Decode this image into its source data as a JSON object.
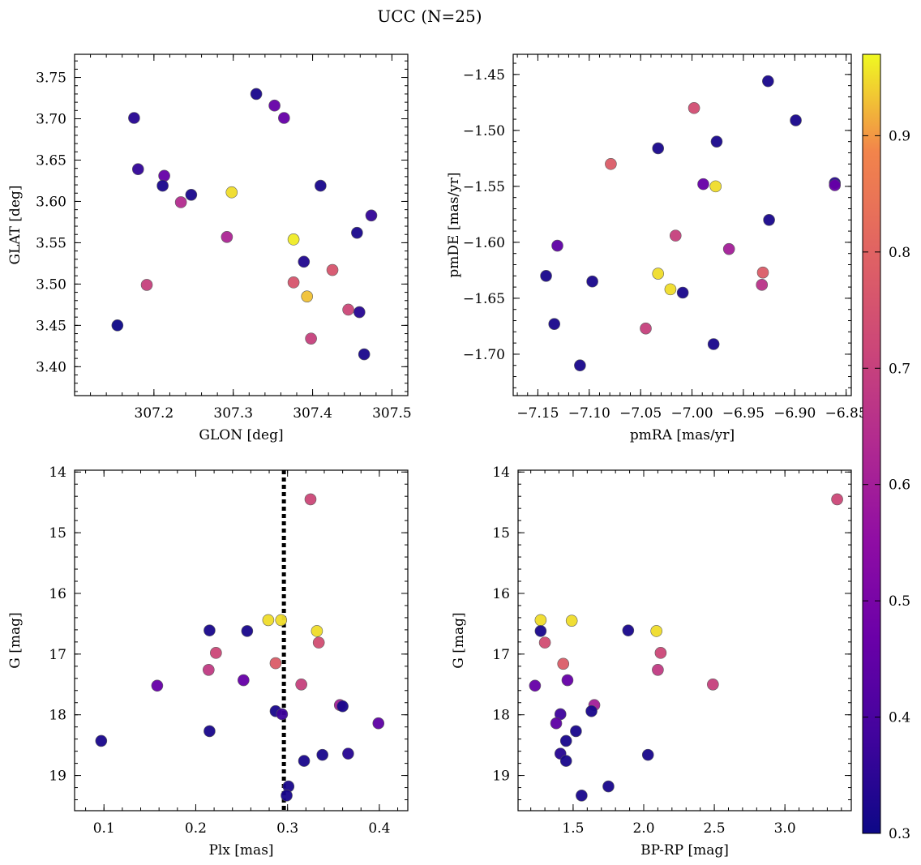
{
  "title": "UCC (N=25)",
  "colorbar": {
    "cmap": "plasma",
    "range": [
      0.3,
      0.97
    ],
    "ticks": [
      "0.3",
      "0.4",
      "0.5",
      "0.6",
      "0.7",
      "0.8",
      "0.9"
    ]
  },
  "chart_data": [
    {
      "type": "scatter",
      "id": "glon-glat",
      "xlabel": "GLON [deg]",
      "ylabel": "GLAT [deg]",
      "xlim": [
        307.1,
        307.52
      ],
      "ylim": [
        3.365,
        3.778
      ],
      "xticks": [
        "307.2",
        "307.3",
        "307.4",
        "307.5"
      ],
      "yticks": [
        "3.40",
        "3.45",
        "3.50",
        "3.55",
        "3.60",
        "3.65",
        "3.70",
        "3.75"
      ],
      "points": [
        {
          "x": 307.175,
          "y": 3.701,
          "c": 0.34
        },
        {
          "x": 307.18,
          "y": 3.639,
          "c": 0.36
        },
        {
          "x": 307.213,
          "y": 3.631,
          "c": 0.46
        },
        {
          "x": 307.211,
          "y": 3.619,
          "c": 0.32
        },
        {
          "x": 307.247,
          "y": 3.608,
          "c": 0.32
        },
        {
          "x": 307.234,
          "y": 3.599,
          "c": 0.64
        },
        {
          "x": 307.298,
          "y": 3.611,
          "c": 0.95
        },
        {
          "x": 307.329,
          "y": 3.73,
          "c": 0.32
        },
        {
          "x": 307.352,
          "y": 3.716,
          "c": 0.46
        },
        {
          "x": 307.364,
          "y": 3.701,
          "c": 0.46
        },
        {
          "x": 307.41,
          "y": 3.619,
          "c": 0.32
        },
        {
          "x": 307.292,
          "y": 3.557,
          "c": 0.62
        },
        {
          "x": 307.376,
          "y": 3.554,
          "c": 0.96
        },
        {
          "x": 307.389,
          "y": 3.527,
          "c": 0.33
        },
        {
          "x": 307.456,
          "y": 3.562,
          "c": 0.32
        },
        {
          "x": 307.474,
          "y": 3.583,
          "c": 0.36
        },
        {
          "x": 307.191,
          "y": 3.499,
          "c": 0.7
        },
        {
          "x": 307.376,
          "y": 3.502,
          "c": 0.76
        },
        {
          "x": 307.425,
          "y": 3.517,
          "c": 0.76
        },
        {
          "x": 307.393,
          "y": 3.485,
          "c": 0.93
        },
        {
          "x": 307.445,
          "y": 3.469,
          "c": 0.72
        },
        {
          "x": 307.459,
          "y": 3.466,
          "c": 0.34
        },
        {
          "x": 307.398,
          "y": 3.434,
          "c": 0.7
        },
        {
          "x": 307.465,
          "y": 3.415,
          "c": 0.32
        },
        {
          "x": 307.154,
          "y": 3.45,
          "c": 0.3
        }
      ]
    },
    {
      "type": "scatter",
      "id": "pm",
      "xlabel": "pmRA [mas/yr]",
      "ylabel": "pmDE [mas/yr]",
      "xlim": [
        -7.174,
        -6.845
      ],
      "ylim": [
        -1.737,
        -1.432
      ],
      "xticks": [
        "−7.15",
        "−7.10",
        "−7.05",
        "−7.00",
        "−6.95",
        "−6.90",
        "−6.85"
      ],
      "yticks": [
        "−1.45",
        "−1.50",
        "−1.55",
        "−1.60",
        "−1.65",
        "−1.70"
      ],
      "points": [
        {
          "x": -6.926,
          "y": -1.456,
          "c": 0.32
        },
        {
          "x": -6.998,
          "y": -1.48,
          "c": 0.74
        },
        {
          "x": -6.899,
          "y": -1.491,
          "c": 0.32
        },
        {
          "x": -7.033,
          "y": -1.516,
          "c": 0.32
        },
        {
          "x": -6.976,
          "y": -1.51,
          "c": 0.32
        },
        {
          "x": -7.079,
          "y": -1.53,
          "c": 0.78
        },
        {
          "x": -6.989,
          "y": -1.548,
          "c": 0.46
        },
        {
          "x": -6.977,
          "y": -1.55,
          "c": 0.95
        },
        {
          "x": -6.861,
          "y": -1.547,
          "c": 0.34
        },
        {
          "x": -6.861,
          "y": -1.549,
          "c": 0.46
        },
        {
          "x": -6.925,
          "y": -1.58,
          "c": 0.32
        },
        {
          "x": -7.016,
          "y": -1.594,
          "c": 0.7
        },
        {
          "x": -6.964,
          "y": -1.606,
          "c": 0.6
        },
        {
          "x": -7.131,
          "y": -1.603,
          "c": 0.44
        },
        {
          "x": -7.142,
          "y": -1.63,
          "c": 0.32
        },
        {
          "x": -7.097,
          "y": -1.635,
          "c": 0.32
        },
        {
          "x": -7.033,
          "y": -1.628,
          "c": 0.95
        },
        {
          "x": -6.931,
          "y": -1.627,
          "c": 0.78
        },
        {
          "x": -6.932,
          "y": -1.638,
          "c": 0.66
        },
        {
          "x": -7.021,
          "y": -1.642,
          "c": 0.95
        },
        {
          "x": -7.009,
          "y": -1.645,
          "c": 0.32
        },
        {
          "x": -7.134,
          "y": -1.673,
          "c": 0.32
        },
        {
          "x": -7.045,
          "y": -1.677,
          "c": 0.7
        },
        {
          "x": -6.979,
          "y": -1.691,
          "c": 0.32
        },
        {
          "x": -7.109,
          "y": -1.71,
          "c": 0.32
        }
      ]
    },
    {
      "type": "scatter",
      "id": "plx-g",
      "xlabel": "Plx [mas]",
      "ylabel": "G [mag]",
      "xlim": [
        0.068,
        0.431
      ],
      "ylim": [
        19.58,
        13.97
      ],
      "y_inverted": true,
      "xticks": [
        "0.1",
        "0.2",
        "0.3",
        "0.4"
      ],
      "yticks": [
        "14",
        "15",
        "16",
        "17",
        "18",
        "19"
      ],
      "vline": 0.296,
      "points": [
        {
          "x": 0.325,
          "y": 14.45,
          "c": 0.72
        },
        {
          "x": 0.279,
          "y": 16.44,
          "c": 0.95
        },
        {
          "x": 0.293,
          "y": 16.44,
          "c": 0.95
        },
        {
          "x": 0.332,
          "y": 16.62,
          "c": 0.95
        },
        {
          "x": 0.215,
          "y": 16.61,
          "c": 0.32
        },
        {
          "x": 0.256,
          "y": 16.62,
          "c": 0.32
        },
        {
          "x": 0.222,
          "y": 16.98,
          "c": 0.72
        },
        {
          "x": 0.334,
          "y": 16.81,
          "c": 0.74
        },
        {
          "x": 0.214,
          "y": 17.26,
          "c": 0.68
        },
        {
          "x": 0.287,
          "y": 17.15,
          "c": 0.78
        },
        {
          "x": 0.158,
          "y": 17.52,
          "c": 0.46
        },
        {
          "x": 0.252,
          "y": 17.43,
          "c": 0.46
        },
        {
          "x": 0.315,
          "y": 17.5,
          "c": 0.7
        },
        {
          "x": 0.357,
          "y": 17.84,
          "c": 0.6
        },
        {
          "x": 0.36,
          "y": 17.86,
          "c": 0.32
        },
        {
          "x": 0.287,
          "y": 17.94,
          "c": 0.32
        },
        {
          "x": 0.294,
          "y": 17.99,
          "c": 0.38
        },
        {
          "x": 0.399,
          "y": 18.14,
          "c": 0.44
        },
        {
          "x": 0.215,
          "y": 18.27,
          "c": 0.32
        },
        {
          "x": 0.097,
          "y": 18.43,
          "c": 0.32
        },
        {
          "x": 0.338,
          "y": 18.66,
          "c": 0.32
        },
        {
          "x": 0.366,
          "y": 18.64,
          "c": 0.34
        },
        {
          "x": 0.318,
          "y": 18.76,
          "c": 0.32
        },
        {
          "x": 0.301,
          "y": 19.18,
          "c": 0.32
        },
        {
          "x": 0.299,
          "y": 19.33,
          "c": 0.32
        }
      ]
    },
    {
      "type": "scatter",
      "id": "bprp-g",
      "xlabel": "BP-RP [mag]",
      "ylabel": "G [mag]",
      "xlim": [
        1.11,
        3.47
      ],
      "ylim": [
        19.58,
        13.97
      ],
      "y_inverted": true,
      "xticks": [
        "1.5",
        "2.0",
        "2.5",
        "3.0"
      ],
      "yticks": [
        "14",
        "15",
        "16",
        "17",
        "18",
        "19"
      ],
      "points": [
        {
          "x": 3.37,
          "y": 14.45,
          "c": 0.72
        },
        {
          "x": 1.27,
          "y": 16.44,
          "c": 0.95
        },
        {
          "x": 1.49,
          "y": 16.45,
          "c": 0.95
        },
        {
          "x": 2.09,
          "y": 16.62,
          "c": 0.95
        },
        {
          "x": 1.27,
          "y": 16.62,
          "c": 0.32
        },
        {
          "x": 1.89,
          "y": 16.61,
          "c": 0.32
        },
        {
          "x": 1.3,
          "y": 16.81,
          "c": 0.74
        },
        {
          "x": 2.12,
          "y": 16.98,
          "c": 0.72
        },
        {
          "x": 1.43,
          "y": 17.16,
          "c": 0.78
        },
        {
          "x": 2.1,
          "y": 17.26,
          "c": 0.68
        },
        {
          "x": 1.46,
          "y": 17.43,
          "c": 0.46
        },
        {
          "x": 1.23,
          "y": 17.52,
          "c": 0.46
        },
        {
          "x": 2.49,
          "y": 17.5,
          "c": 0.7
        },
        {
          "x": 1.65,
          "y": 17.84,
          "c": 0.6
        },
        {
          "x": 1.63,
          "y": 17.94,
          "c": 0.32
        },
        {
          "x": 1.41,
          "y": 17.99,
          "c": 0.38
        },
        {
          "x": 1.38,
          "y": 18.14,
          "c": 0.44
        },
        {
          "x": 1.52,
          "y": 18.27,
          "c": 0.32
        },
        {
          "x": 1.45,
          "y": 18.43,
          "c": 0.32
        },
        {
          "x": 1.41,
          "y": 18.64,
          "c": 0.34
        },
        {
          "x": 2.03,
          "y": 18.66,
          "c": 0.32
        },
        {
          "x": 1.45,
          "y": 18.76,
          "c": 0.32
        },
        {
          "x": 1.75,
          "y": 19.18,
          "c": 0.32
        },
        {
          "x": 1.56,
          "y": 19.33,
          "c": 0.32
        }
      ]
    }
  ]
}
